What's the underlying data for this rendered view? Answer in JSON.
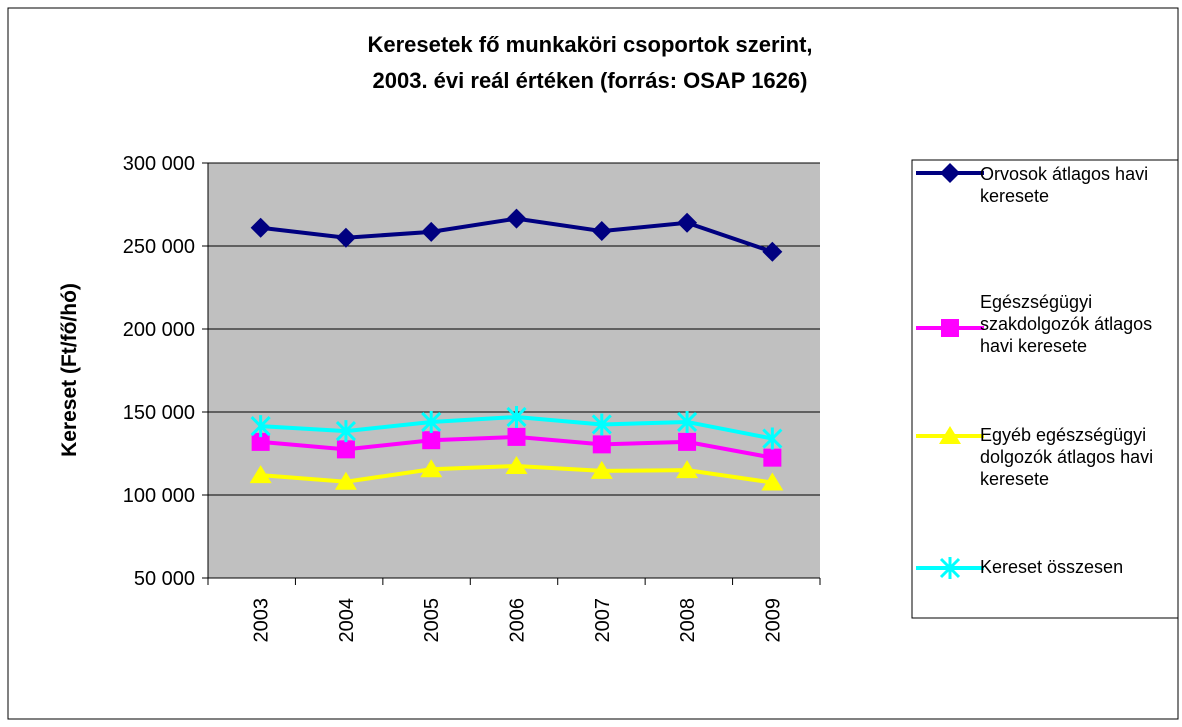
{
  "chart_data": {
    "type": "line",
    "title": [
      "Keresetek fő munkaköri csoportok szerint,",
      "2003. évi reál értéken (forrás: OSAP 1626)"
    ],
    "y_label": "Kereset (Ft/fő/hó)",
    "categories": [
      "2003",
      "2004",
      "2005",
      "2006",
      "2007",
      "2008",
      "2009"
    ],
    "ylim": [
      50000,
      300000
    ],
    "yticks": [
      {
        "value": 50000,
        "label": "50 000"
      },
      {
        "value": 100000,
        "label": "100 000"
      },
      {
        "value": 150000,
        "label": "150 000"
      },
      {
        "value": 200000,
        "label": "200 000"
      },
      {
        "value": 250000,
        "label": "250 000"
      },
      {
        "value": 300000,
        "label": "300 000"
      }
    ],
    "grid": true,
    "legend": "right",
    "series": [
      {
        "name": "Orvosok átlagos havi keresete",
        "color": "#000080",
        "marker": "diamond",
        "values": [
          261000,
          255000,
          258500,
          266500,
          259000,
          264000,
          246500
        ]
      },
      {
        "name": "Egészségügyi szakdolgozók átlagos havi keresete",
        "color": "#ff00ff",
        "marker": "square",
        "values": [
          132000,
          127500,
          133000,
          135000,
          130500,
          132000,
          122500
        ]
      },
      {
        "name": "Egyéb egészségügyi dolgozók  átlagos havi keresete",
        "color": "#ffff00",
        "marker": "triangle",
        "values": [
          112000,
          108000,
          115500,
          117500,
          114500,
          115000,
          107500
        ]
      },
      {
        "name": "Kereset összesen",
        "color": "#00ffff",
        "marker": "x",
        "values": [
          141500,
          138500,
          144000,
          147000,
          142500,
          144000,
          134000
        ]
      }
    ]
  }
}
